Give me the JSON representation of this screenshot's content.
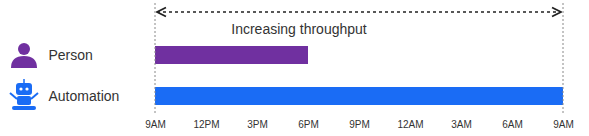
{
  "chart_data": {
    "type": "bar",
    "orientation": "horizontal",
    "annotation": "Increasing throughput",
    "categories": [
      "Person",
      "Automation"
    ],
    "values": [
      9,
      24
    ],
    "colors": [
      "#7030a0",
      "#1a6cf5"
    ],
    "xlim": [
      0,
      24
    ],
    "xticks": [
      {
        "value": 0,
        "label": "9AM"
      },
      {
        "value": 3,
        "label": "12PM"
      },
      {
        "value": 6,
        "label": "3PM"
      },
      {
        "value": 9,
        "label": "6PM"
      },
      {
        "value": 12,
        "label": "9PM"
      },
      {
        "value": 15,
        "label": "12AM"
      },
      {
        "value": 18,
        "label": "3AM"
      },
      {
        "value": 21,
        "label": "6AM"
      },
      {
        "value": 24,
        "label": "9AM"
      }
    ],
    "grid": false
  }
}
